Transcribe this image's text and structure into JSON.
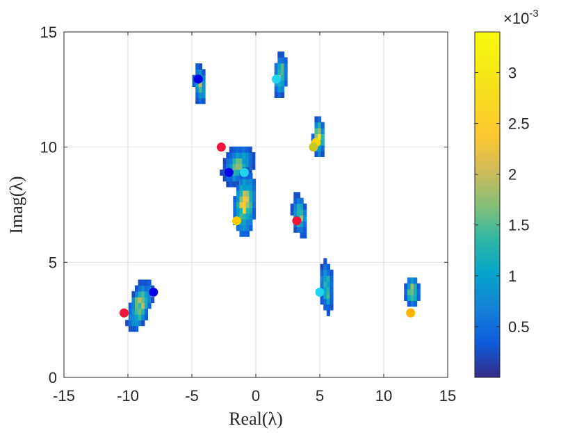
{
  "chart_data": {
    "type": "heatmap",
    "title": "",
    "xlabel": "Real(λ)",
    "ylabel": "Imag(λ)",
    "xlim": [
      -15,
      15
    ],
    "ylim": [
      0,
      15
    ],
    "xticks": [
      -15,
      -10,
      -5,
      0,
      5,
      10,
      15
    ],
    "yticks": [
      0,
      5,
      10,
      15
    ],
    "grid": true,
    "colormap": "parula",
    "colorbar": {
      "range": [
        0,
        0.0034
      ],
      "ticks": [
        "0.5",
        "1",
        "1.5",
        "2",
        "2.5",
        "3"
      ],
      "tick_values": [
        0.5,
        1,
        1.5,
        2,
        2.5,
        3
      ],
      "exponent_label": "×10",
      "exponent": "-3"
    },
    "clusters": [
      {
        "center": [
          -4.5,
          12.6
        ],
        "spread": [
          0.5,
          0.9
        ],
        "angle": 10,
        "peak": 1.8
      },
      {
        "center": [
          1.8,
          13.0
        ],
        "spread": [
          0.55,
          1.0
        ],
        "angle": -10,
        "peak": 1.9
      },
      {
        "center": [
          4.8,
          10.3
        ],
        "spread": [
          0.5,
          0.9
        ],
        "angle": 0,
        "peak": 2.4
      },
      {
        "center": [
          -1.5,
          9.1
        ],
        "spread": [
          1.35,
          0.85
        ],
        "angle": 20,
        "peak": 1.5
      },
      {
        "center": [
          -1.0,
          7.4
        ],
        "spread": [
          0.9,
          1.5
        ],
        "angle": -10,
        "peak": 2.3
      },
      {
        "center": [
          3.3,
          6.9
        ],
        "spread": [
          0.6,
          1.0
        ],
        "angle": 15,
        "peak": 1.7
      },
      {
        "center": [
          5.4,
          3.8
        ],
        "spread": [
          0.55,
          1.2
        ],
        "angle": 5,
        "peak": 1.6
      },
      {
        "center": [
          12.1,
          3.6
        ],
        "spread": [
          0.6,
          0.75
        ],
        "angle": 10,
        "peak": 1.9
      },
      {
        "center": [
          -9.2,
          3.0
        ],
        "spread": [
          0.75,
          1.3
        ],
        "angle": -40,
        "peak": 2.0
      }
    ],
    "points": [
      {
        "x": -4.5,
        "y": 12.95,
        "color": "#0000e6"
      },
      {
        "x": 1.6,
        "y": 12.95,
        "color": "#22d3f0"
      },
      {
        "x": 4.7,
        "y": 10.2,
        "color": "#ffd400"
      },
      {
        "x": 4.5,
        "y": 10.0,
        "color": "#c8c820"
      },
      {
        "x": -2.7,
        "y": 10.0,
        "color": "#f0153a"
      },
      {
        "x": -2.1,
        "y": 8.9,
        "color": "#0000e6"
      },
      {
        "x": -0.9,
        "y": 8.9,
        "color": "#22d3f0"
      },
      {
        "x": -1.5,
        "y": 6.8,
        "color": "#ffcc00"
      },
      {
        "x": 3.2,
        "y": 6.8,
        "color": "#f0153a"
      },
      {
        "x": 5.0,
        "y": 3.7,
        "color": "#22d3f0"
      },
      {
        "x": 12.1,
        "y": 2.8,
        "color": "#ffb400"
      },
      {
        "x": -8.0,
        "y": 3.7,
        "color": "#0000e6"
      },
      {
        "x": -10.3,
        "y": 2.8,
        "color": "#f0153a"
      }
    ]
  }
}
